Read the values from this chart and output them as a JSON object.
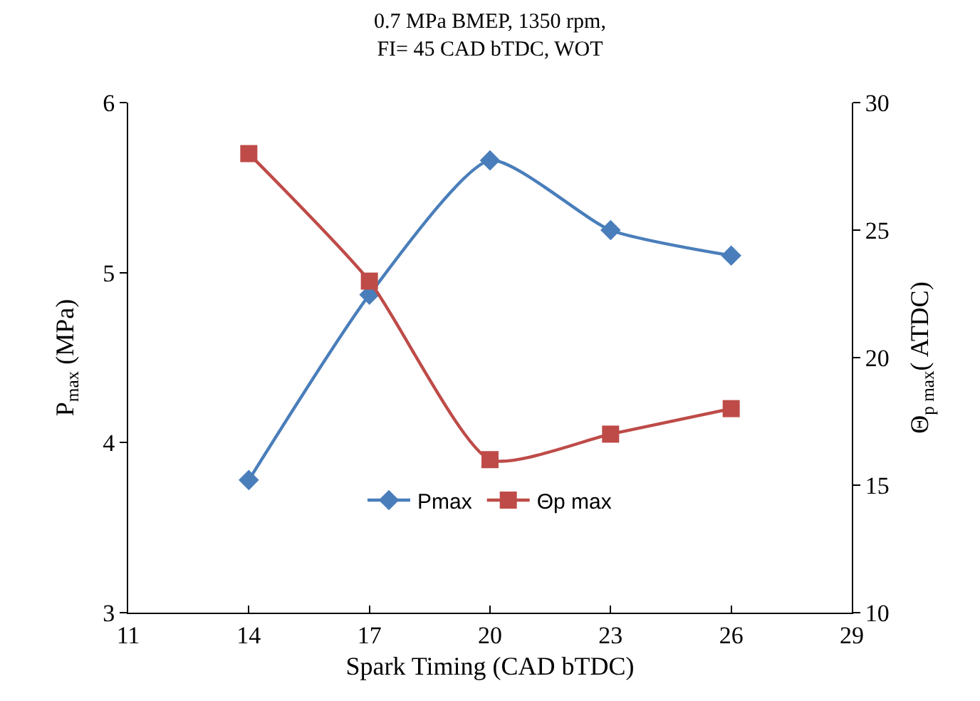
{
  "chart_data": {
    "type": "line",
    "title": "0.7 MPa BMEP, 1350 rpm,\nFI= 45 CAD bTDC, WOT",
    "xlabel": "Spark Timing (CAD bTDC)",
    "ylabel": "P$_{max}$ (MPa)",
    "y2label": "Θ$_{p max}$( ATDC)",
    "x": [
      14,
      17,
      20,
      23,
      26
    ],
    "series": [
      {
        "name": "Pmax",
        "color": "#4a7ebb",
        "values": [
          3.78,
          4.87,
          5.66,
          5.25,
          5.1
        ],
        "marker": "diamond"
      },
      {
        "name": "Θp max",
        "color": "#be4b48",
        "values": [
          28,
          23,
          16,
          17,
          18
        ],
        "marker": "square",
        "axis": "y2"
      }
    ],
    "xlim": [
      11,
      29
    ],
    "xticks": [
      11,
      14,
      17,
      20,
      23,
      26,
      29
    ],
    "ylim": [
      3,
      6
    ],
    "yticks": [
      3,
      4,
      5,
      6
    ],
    "y2lim": [
      10,
      30
    ],
    "y2ticks": [
      10,
      15,
      20,
      25,
      30
    ],
    "legend": "bottom",
    "line_style": "solid"
  }
}
